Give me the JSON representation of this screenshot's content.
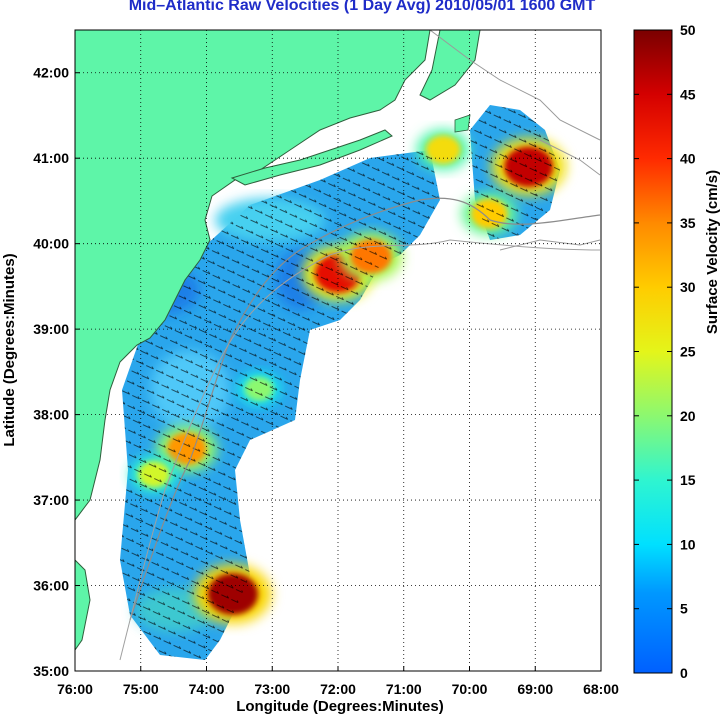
{
  "title": "Mid–Atlantic Raw Velocities (1 Day Avg) 2010/05/01 1600 GMT",
  "chart_data": {
    "type": "heatmap",
    "title": "Mid–Atlantic Raw Velocities (1 Day Avg) 2010/05/01 1600 GMT",
    "xlabel": "Longitude (Degrees:Minutes)",
    "ylabel": "Latitude (Degrees:Minutes)",
    "xlim": [
      -76,
      -68
    ],
    "ylim": [
      35,
      42.5
    ],
    "x_ticks": [
      -76,
      -75,
      -74,
      -73,
      -72,
      -71,
      -70,
      -69,
      -68
    ],
    "x_tick_labels": [
      "76:00",
      "75:00",
      "74:00",
      "73:00",
      "72:00",
      "71:00",
      "70:00",
      "69:00",
      "68:00"
    ],
    "y_ticks": [
      35,
      36,
      37,
      38,
      39,
      40,
      41,
      42
    ],
    "y_tick_labels": [
      "35:00",
      "36:00",
      "37:00",
      "38:00",
      "39:00",
      "40:00",
      "41:00",
      "42:00"
    ],
    "grid": "dotted",
    "colorbar": {
      "label": "Surface Velocity (cm/s)",
      "range": [
        0,
        50
      ],
      "ticks": [
        0,
        5,
        10,
        15,
        20,
        25,
        30,
        35,
        40,
        45,
        50
      ],
      "tick_labels": [
        "0",
        "5",
        "10",
        "15",
        "20",
        "25",
        "30",
        "35",
        "40",
        "45",
        "50"
      ],
      "colormap": "jet"
    },
    "land_color": "#5ef5a8",
    "hotspots": [
      {
        "lon": -73.6,
        "lat": 35.9,
        "speed": 48
      },
      {
        "lon": -69.1,
        "lat": 40.9,
        "speed": 46
      },
      {
        "lon": -72.0,
        "lat": 39.65,
        "speed": 43
      },
      {
        "lon": -71.5,
        "lat": 39.85,
        "speed": 36
      },
      {
        "lon": -74.3,
        "lat": 37.6,
        "speed": 34
      },
      {
        "lon": -69.7,
        "lat": 40.35,
        "speed": 30
      },
      {
        "lon": -70.4,
        "lat": 41.1,
        "speed": 28
      },
      {
        "lon": -74.8,
        "lat": 37.3,
        "speed": 24
      },
      {
        "lon": -73.2,
        "lat": 38.3,
        "speed": 20
      }
    ],
    "background_speed": 8
  }
}
